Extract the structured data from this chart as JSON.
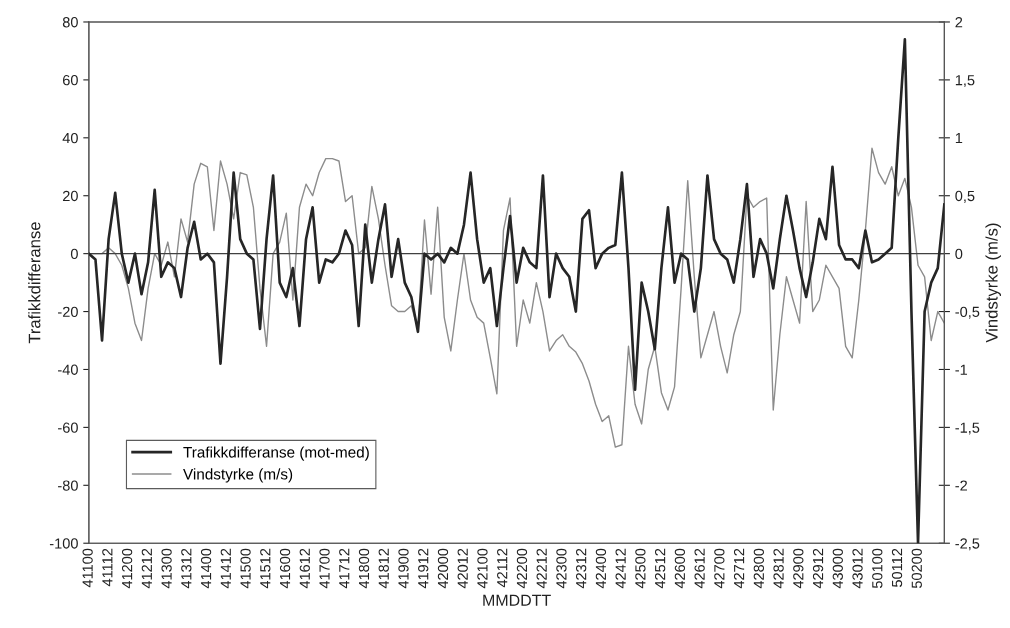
{
  "chart_data": {
    "type": "line",
    "xlabel": "MMDDTT",
    "ylabel": "Trafikkdifferanse",
    "y2label": "Vindstyrke (m/s)",
    "categories": [
      "41100",
      null,
      null,
      "41112",
      null,
      null,
      "41200",
      null,
      null,
      "41212",
      null,
      null,
      "41300",
      null,
      null,
      "41312",
      null,
      null,
      "41400",
      null,
      null,
      "41412",
      null,
      null,
      "41500",
      null,
      null,
      "41512",
      null,
      null,
      "41600",
      null,
      null,
      "41612",
      null,
      null,
      "41700",
      null,
      null,
      "41712",
      null,
      null,
      "41800",
      null,
      null,
      "41812",
      null,
      null,
      "41900",
      null,
      null,
      "41912",
      null,
      null,
      "42000",
      null,
      null,
      "42012",
      null,
      null,
      "42100",
      null,
      null,
      "42112",
      null,
      null,
      "42200",
      null,
      null,
      "42212",
      null,
      null,
      "42300",
      null,
      null,
      "42312",
      null,
      null,
      "42400",
      null,
      null,
      "42412",
      null,
      null,
      "42500",
      null,
      null,
      "42512",
      null,
      null,
      "42600",
      null,
      null,
      "42612",
      null,
      null,
      "42700",
      null,
      null,
      "42712",
      null,
      null,
      "42800",
      null,
      null,
      "42812",
      null,
      null,
      "42900",
      null,
      null,
      "42912",
      null,
      null,
      "43000",
      null,
      null,
      "43012",
      null,
      null,
      "50100",
      null,
      null,
      "50112",
      null,
      null,
      "50200",
      null,
      null,
      null,
      null
    ],
    "series": [
      {
        "name": "Trafikkdifferanse (mot-med)",
        "color": "#262626",
        "values": [
          0,
          -2,
          -30,
          5,
          21,
          0,
          -10,
          0,
          -14,
          -3,
          22,
          -8,
          -3,
          -5,
          -15,
          2,
          11,
          -2,
          0,
          -3,
          -38,
          -8,
          28,
          5,
          0,
          -2,
          -26,
          5,
          27,
          -10,
          -15,
          -5,
          -25,
          5,
          16,
          -10,
          -2,
          -3,
          0,
          8,
          3,
          -25,
          10,
          -10,
          5,
          17,
          -8,
          5,
          -10,
          -15,
          -27,
          0,
          -2,
          0,
          -3,
          2,
          0,
          10,
          28,
          5,
          -10,
          -5,
          -25,
          -5,
          13,
          -10,
          2,
          -3,
          -5,
          27,
          -15,
          0,
          -5,
          -8,
          -20,
          12,
          15,
          -5,
          0,
          2,
          3,
          28,
          -5,
          -47,
          -10,
          -20,
          -33,
          -5,
          16,
          -10,
          0,
          -2,
          -20,
          -5,
          27,
          5,
          0,
          -2,
          -10,
          5,
          24,
          -8,
          5,
          0,
          -12,
          5,
          20,
          8,
          -5,
          -15,
          -3,
          12,
          5,
          30,
          3,
          -2,
          -2,
          -5,
          8,
          -3,
          -2,
          0,
          2,
          40,
          74,
          -20,
          -100,
          -20,
          -10,
          -5,
          17
        ]
      },
      {
        "name": "Vindstyrke (m/s)",
        "color": "#8c8c8c",
        "axis": "y2",
        "values": [
          0,
          0,
          0,
          0.05,
          0,
          -0.1,
          -0.3,
          -0.6,
          -0.75,
          -0.3,
          0,
          -0.1,
          0.1,
          -0.2,
          0.3,
          0.1,
          0.6,
          0.78,
          0.75,
          0.2,
          0.8,
          0.6,
          0.3,
          0.7,
          0.68,
          0.4,
          -0.3,
          -0.8,
          0,
          0.1,
          0.35,
          -0.4,
          0.4,
          0.6,
          0.5,
          0.7,
          0.82,
          0.82,
          0.8,
          0.45,
          0.5,
          0,
          0.05,
          0.58,
          0.3,
          -0.1,
          -0.45,
          -0.5,
          -0.5,
          -0.45,
          -0.65,
          0.29,
          -0.35,
          0.4,
          -0.55,
          -0.84,
          -0.4,
          0,
          -0.4,
          -0.55,
          -0.6,
          -0.9,
          -1.21,
          0.2,
          0.48,
          -0.8,
          -0.4,
          -0.6,
          -0.25,
          -0.5,
          -0.84,
          -0.75,
          -0.7,
          -0.8,
          -0.85,
          -0.95,
          -1.1,
          -1.3,
          -1.45,
          -1.4,
          -1.67,
          -1.65,
          -0.8,
          -1.3,
          -1.47,
          -1.0,
          -0.8,
          -1.2,
          -1.35,
          -1.15,
          -0.3,
          0.63,
          -0.2,
          -0.9,
          -0.7,
          -0.5,
          -0.8,
          -1.03,
          -0.7,
          -0.5,
          0.5,
          0.4,
          0.45,
          0.48,
          -1.35,
          -0.7,
          -0.2,
          -0.4,
          -0.6,
          0.45,
          -0.5,
          -0.4,
          -0.1,
          -0.2,
          -0.3,
          -0.8,
          -0.9,
          -0.4,
          0.2,
          0.91,
          0.7,
          0.6,
          0.75,
          0.5,
          0.65,
          0.4,
          -0.1,
          -0.2,
          -0.75,
          -0.5,
          -0.6
        ]
      }
    ],
    "ylim": [
      -100,
      80
    ],
    "yticks": [
      -100,
      -80,
      -60,
      -40,
      -20,
      0,
      20,
      40,
      60,
      80
    ],
    "y2lim": [
      -2.5,
      2
    ],
    "y2ticks": [
      {
        "value": -2.5,
        "label": "-2,5"
      },
      -2,
      {
        "value": -1.5,
        "label": "-1,5"
      },
      -1,
      {
        "value": -0.5,
        "label": "-0,5"
      },
      0,
      {
        "value": 0.5,
        "label": "0,5"
      },
      1,
      {
        "value": 1.5,
        "label": "1,5"
      },
      2
    ],
    "ref_lines": [
      {
        "axis": "y",
        "value": 0,
        "color": "#404040"
      }
    ],
    "grid": false,
    "legend": "bottom left",
    "marker": "none",
    "line_style": "solid"
  }
}
